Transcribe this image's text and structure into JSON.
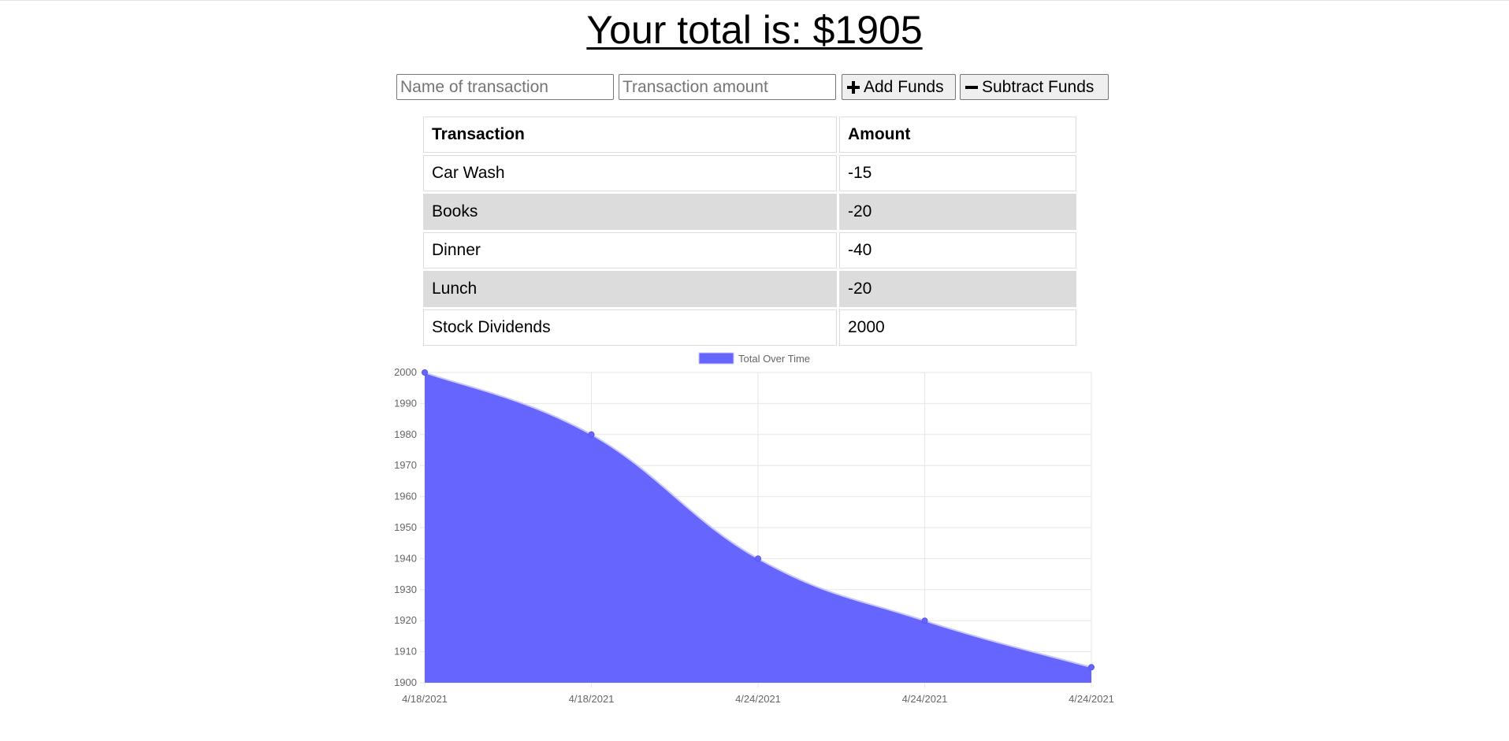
{
  "header": {
    "title": "Your total is: $1905"
  },
  "form": {
    "name_placeholder": "Name of transaction",
    "amount_placeholder": "Transaction amount",
    "add_label": "Add Funds",
    "subtract_label": "Subtract Funds",
    "add_icon": "plus-icon",
    "subtract_icon": "minus-icon"
  },
  "table": {
    "headers": [
      "Transaction",
      "Amount"
    ],
    "rows": [
      {
        "name": "Car Wash",
        "amount": "-15"
      },
      {
        "name": "Books",
        "amount": "-20"
      },
      {
        "name": "Dinner",
        "amount": "-40"
      },
      {
        "name": "Lunch",
        "amount": "-20"
      },
      {
        "name": "Stock Dividends",
        "amount": "2000"
      }
    ],
    "shaded_row_color": "#dcdcdc"
  },
  "chart_data": {
    "type": "area",
    "categories": [
      "4/18/2021",
      "4/18/2021",
      "4/24/2021",
      "4/24/2021",
      "4/24/2021"
    ],
    "series": [
      {
        "name": "Total Over Time",
        "values": [
          2000,
          1980,
          1940,
          1920,
          1905
        ],
        "color": "#6666ff"
      }
    ],
    "ylim": [
      1900,
      2000
    ],
    "yticks": [
      1900,
      1910,
      1920,
      1930,
      1940,
      1950,
      1960,
      1970,
      1980,
      1990,
      2000
    ],
    "grid": true,
    "legend": "top-center"
  }
}
